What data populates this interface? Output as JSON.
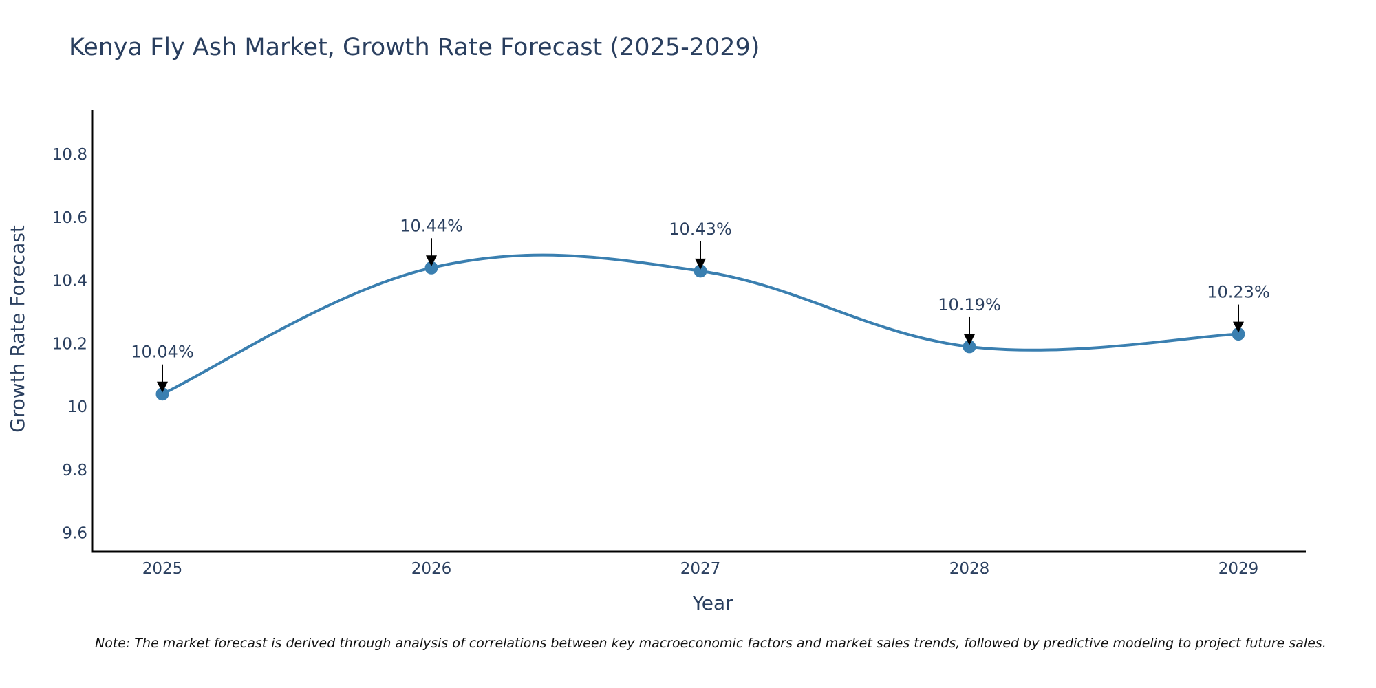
{
  "chart_data": {
    "type": "line",
    "title": "Kenya Fly Ash Market, Growth Rate Forecast (2025-2029)",
    "xlabel": "Year",
    "ylabel": "Growth Rate Forecast",
    "categories": [
      "2025",
      "2026",
      "2027",
      "2028",
      "2029"
    ],
    "values": [
      10.04,
      10.44,
      10.43,
      10.19,
      10.23
    ],
    "data_labels": [
      "10.04%",
      "10.44%",
      "10.43%",
      "10.19%",
      "10.23%"
    ],
    "y_ticks": [
      9.6,
      9.8,
      10,
      10.2,
      10.4,
      10.6,
      10.8
    ],
    "y_tick_labels": [
      "9.6",
      "9.8",
      "10",
      "10.2",
      "10.4",
      "10.6",
      "10.8"
    ],
    "ylim": [
      9.54,
      10.94
    ],
    "line_shape": "spline",
    "grid": false,
    "legend": "none",
    "line_color": "#3a7fb0",
    "marker_color": "#3a7fb0",
    "arrow_color": "#000000",
    "axis_color": "#000000"
  },
  "note": "Note: The market forecast is derived through analysis of correlations between key macroeconomic factors and market sales trends, followed by predictive modeling to project future sales."
}
